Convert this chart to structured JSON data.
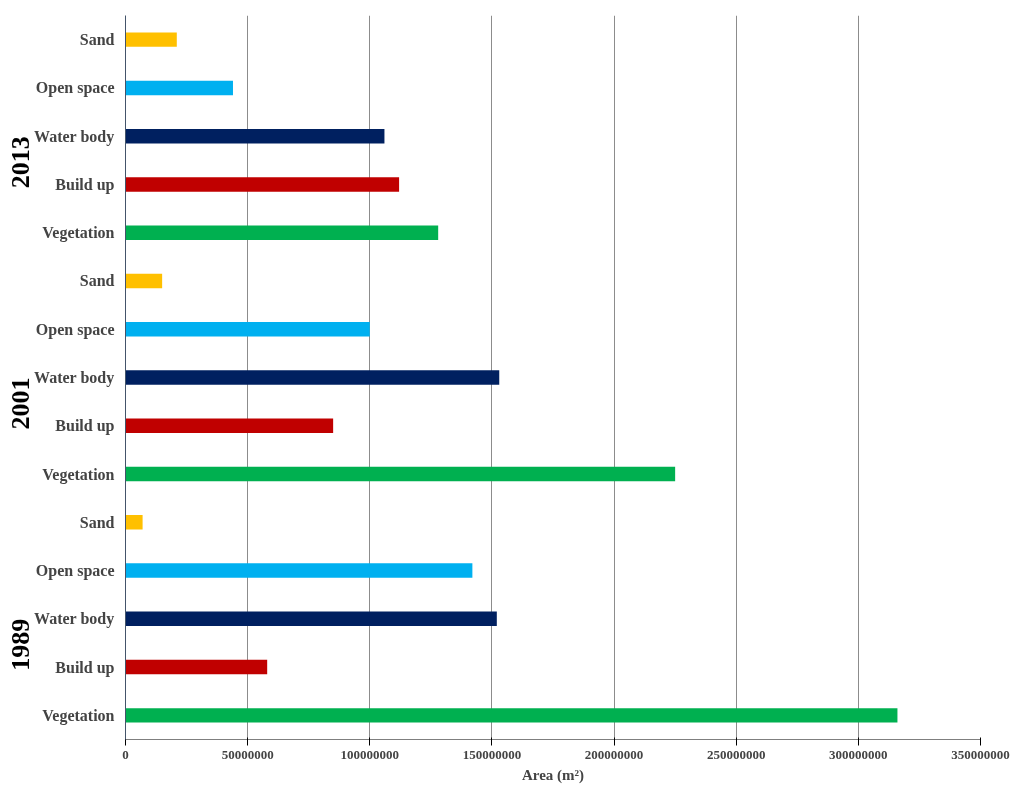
{
  "chart_data": {
    "type": "bar",
    "orientation": "horizontal",
    "xlabel": "Area (m²)",
    "categories": [
      "Sand",
      "Open space",
      "Water body",
      "Build up",
      "Vegetation",
      "Sand",
      "Open space",
      "Water body",
      "Build up",
      "Vegetation",
      "Sand",
      "Open space",
      "Water body",
      "Build up",
      "Vegetation"
    ],
    "values": [
      21000000,
      44000000,
      106000000,
      112000000,
      128000000,
      15000000,
      100000000,
      153000000,
      85000000,
      225000000,
      7000000,
      142000000,
      152000000,
      58000000,
      316000000
    ],
    "colors": [
      "#ffc000",
      "#00b0f0",
      "#002060",
      "#c00000",
      "#00b050",
      "#ffc000",
      "#00b0f0",
      "#002060",
      "#c00000",
      "#00b050",
      "#ffc000",
      "#00b0f0",
      "#002060",
      "#c00000",
      "#00b050"
    ],
    "annotations": [
      "2013",
      "2001",
      "1989"
    ],
    "xlim": [
      0,
      350000000
    ],
    "xticks": [
      0,
      50000000,
      100000000,
      150000000,
      200000000,
      250000000,
      300000000,
      350000000
    ],
    "grid": "x"
  }
}
